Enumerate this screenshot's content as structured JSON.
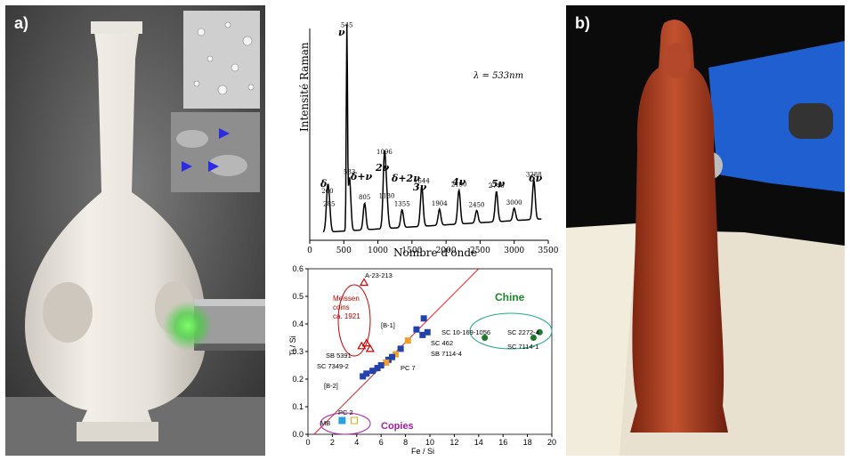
{
  "panels": {
    "a_label": "a)",
    "b_label": "b)"
  },
  "raman": {
    "ylabel": "Intensité Raman",
    "xlabel": "Nombre d'onde",
    "lambda": "λ = 533nm",
    "x_ticks": [
      "0",
      "500",
      "1000",
      "1500",
      "2000",
      "2500",
      "3000",
      "3500"
    ],
    "peaks": [
      {
        "x": 260,
        "label": "260"
      },
      {
        "x": 285,
        "label": "285"
      },
      {
        "x": 545,
        "label": "545"
      },
      {
        "x": 583,
        "label": "583"
      },
      {
        "x": 805,
        "label": "805"
      },
      {
        "x": 1096,
        "label": "1096"
      },
      {
        "x": 1130,
        "label": "1130"
      },
      {
        "x": 1355,
        "label": "1355"
      },
      {
        "x": 1644,
        "label": "1644"
      },
      {
        "x": 1904,
        "label": "1904"
      },
      {
        "x": 2190,
        "label": "2190"
      },
      {
        "x": 2450,
        "label": "2450"
      },
      {
        "x": 2740,
        "label": "2740"
      },
      {
        "x": 3000,
        "label": "3000"
      },
      {
        "x": 3288,
        "label": "3288"
      }
    ],
    "annotations": [
      "δ",
      "δ+ν",
      "2ν",
      "δ+2ν",
      "3ν",
      "4ν",
      "5ν",
      "6ν",
      "ν"
    ]
  },
  "chart_data": [
    {
      "type": "line",
      "xlabel": "Nombre d'onde",
      "ylabel": "Intensité Raman",
      "xlim": [
        0,
        3500
      ],
      "peaks_x": [
        260,
        285,
        545,
        583,
        805,
        1096,
        1130,
        1355,
        1644,
        1904,
        2190,
        2450,
        2740,
        3000,
        3288
      ]
    },
    {
      "type": "scatter",
      "xlabel": "Fe / Si",
      "ylabel": "Ti / Si",
      "xlim": [
        0,
        20
      ],
      "ylim": [
        0,
        0.6
      ],
      "x_ticks": [
        "0",
        "2",
        "4",
        "6",
        "8",
        "10",
        "12",
        "14",
        "16",
        "18",
        "20"
      ],
      "y_ticks": [
        "0.0",
        "0.1",
        "0.2",
        "0.3",
        "0.4",
        "0.5",
        "0.6"
      ],
      "groups": {
        "meissen": "Meissen coins ca. 1921",
        "chine": "Chine",
        "copies": "Copies"
      },
      "labels": [
        "A-23-213",
        "[B-1]",
        "SC 10-169-1056",
        "SC 2272-4",
        "SC 462",
        "SB 7114-4",
        "SC 7114-1",
        "SB 5391",
        "SC 7349-2",
        "PC 7",
        "[B-2]",
        "PC 2",
        "MB"
      ],
      "points": [
        {
          "x": 4.6,
          "y": 0.55
        },
        {
          "x": 4.4,
          "y": 0.32
        },
        {
          "x": 4.8,
          "y": 0.33
        },
        {
          "x": 5.1,
          "y": 0.31
        },
        {
          "x": 9.5,
          "y": 0.42
        },
        {
          "x": 8.9,
          "y": 0.38
        },
        {
          "x": 9.8,
          "y": 0.37
        },
        {
          "x": 9.4,
          "y": 0.36
        },
        {
          "x": 8.2,
          "y": 0.34
        },
        {
          "x": 7.6,
          "y": 0.31
        },
        {
          "x": 7.2,
          "y": 0.29
        },
        {
          "x": 6.9,
          "y": 0.28
        },
        {
          "x": 6.6,
          "y": 0.27
        },
        {
          "x": 6.4,
          "y": 0.26
        },
        {
          "x": 6.0,
          "y": 0.25
        },
        {
          "x": 5.7,
          "y": 0.24
        },
        {
          "x": 5.3,
          "y": 0.23
        },
        {
          "x": 4.8,
          "y": 0.22
        },
        {
          "x": 4.5,
          "y": 0.21
        },
        {
          "x": 14.5,
          "y": 0.35
        },
        {
          "x": 18.5,
          "y": 0.35
        },
        {
          "x": 19.0,
          "y": 0.37
        },
        {
          "x": 2.8,
          "y": 0.05
        },
        {
          "x": 3.8,
          "y": 0.05
        }
      ]
    }
  ],
  "scatter_text": {
    "meissen_l1": "Meissen",
    "meissen_l2": "coins",
    "meissen_l3": "ca. 1921",
    "chine": "Chine",
    "copies": "Copies",
    "xlabel": "Fe / Si",
    "ylabel": "Ti / Si"
  }
}
